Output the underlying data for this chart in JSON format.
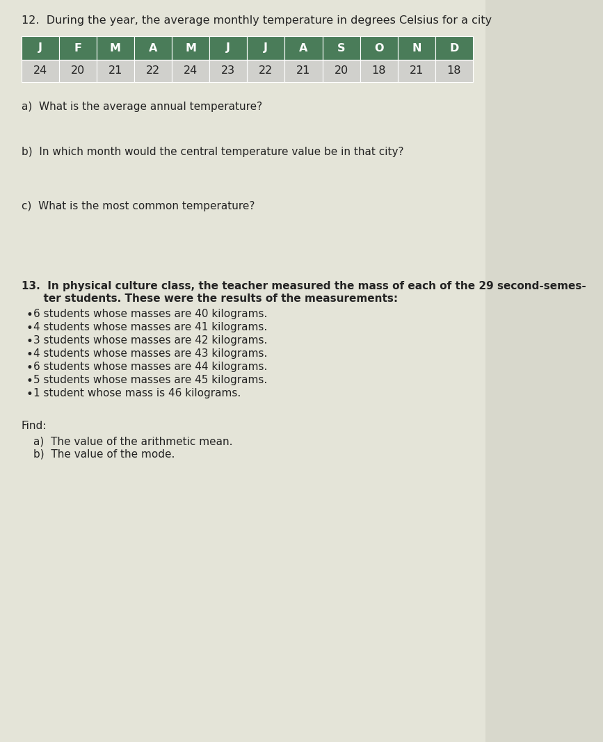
{
  "problem_12_title": "12.  During the year, the average monthly temperature in degrees Celsius for a city",
  "months_header": [
    "J",
    "F",
    "M",
    "A",
    "M",
    "J",
    "J",
    "A",
    "S",
    "O",
    "N",
    "D"
  ],
  "temperatures": [
    "24",
    "20",
    "21",
    "22",
    "24",
    "23",
    "22",
    "21",
    "20",
    "18",
    "21",
    "18"
  ],
  "header_bg_color": "#4a7c59",
  "header_text_color": "#ffffff",
  "data_row_bg_color": "#d0d0cc",
  "data_text_color": "#222222",
  "q12a": "a)  What is the average annual temperature?",
  "q12b": "b)  In which month would the central temperature value be in that city?",
  "q12c": "c)  What is the most common temperature?",
  "p13_line1": "13.  In physical culture class, the teacher measured the mass of each of the 29 second-semes-",
  "p13_line2": "      ter students. These were the results of the measurements:",
  "bullet_items": [
    "6 students whose masses are 40 kilograms.",
    "4 students whose masses are 41 kilograms.",
    "3 students whose masses are 42 kilograms.",
    "4 students whose masses are 43 kilograms.",
    "6 students whose masses are 44 kilograms.",
    "5 students whose masses are 45 kilograms.",
    "1 student whose mass is 46 kilograms."
  ],
  "find_label": "Find:",
  "q13a": "a)  The value of the arithmetic mean.",
  "q13b": "b)  The value of the mode.",
  "page_bg_color": "#d8d8cc",
  "content_bg_color": "#e4e4d8",
  "text_color": "#222222",
  "title_fontsize": 11.5,
  "body_fontsize": 11,
  "table_fontsize": 11.5
}
